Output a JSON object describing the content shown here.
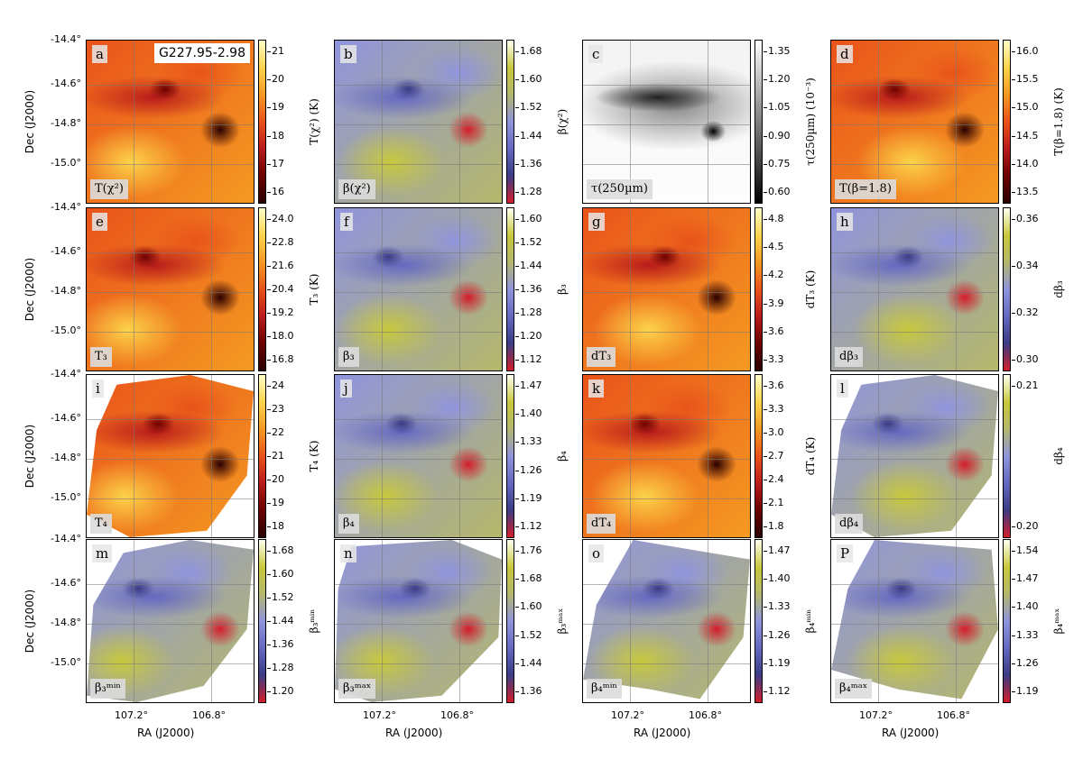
{
  "source_name": "G227.95-2.98",
  "dec_label": "Dec (J2000)",
  "ra_label": "RA (J2000)",
  "dec_ticks": [
    "-14.4°",
    "-14.6°",
    "-14.8°",
    "-15.0°"
  ],
  "ra_ticks": [
    "107.2°",
    "106.8°"
  ],
  "colormaps": {
    "hot": [
      "#2a0000",
      "#6e0000",
      "#b81b1b",
      "#e9531a",
      "#f59a22",
      "#fcd34a",
      "#ffffc8"
    ],
    "beta": [
      "#d21e2b",
      "#3a3c86",
      "#6468c0",
      "#8f94dd",
      "#b5b86a",
      "#c8c83c",
      "#fffff0"
    ],
    "gray": [
      "#000000",
      "#555555",
      "#aaaaaa",
      "#ffffff"
    ]
  },
  "panels": [
    {
      "letter": "a",
      "tag": "T(χ²)",
      "cmap": "hot",
      "cbar_label": "T(χ²) (K)",
      "ticks": [
        "21",
        "20",
        "19",
        "18",
        "17",
        "16"
      ]
    },
    {
      "letter": "b",
      "tag": "β(χ²)",
      "cmap": "beta",
      "cbar_label": "β(χ²)",
      "ticks": [
        "1.68",
        "1.60",
        "1.52",
        "1.44",
        "1.36",
        "1.28"
      ]
    },
    {
      "letter": "c",
      "tag": "τ(250µm)",
      "cmap": "gray",
      "cbar_label": "τ(250µm) (10⁻³)",
      "ticks": [
        "1.35",
        "1.20",
        "1.05",
        "0.90",
        "0.75",
        "0.60"
      ]
    },
    {
      "letter": "d",
      "tag": "T(β=1.8)",
      "cmap": "hot",
      "cbar_label": "T(β=1.8) (K)",
      "ticks": [
        "16.0",
        "15.5",
        "15.0",
        "14.5",
        "14.0",
        "13.5"
      ]
    },
    {
      "letter": "e",
      "tag": "T₃",
      "cmap": "hot",
      "cbar_label": "T₃ (K)",
      "ticks": [
        "24.0",
        "22.8",
        "21.6",
        "20.4",
        "19.2",
        "18.0",
        "16.8"
      ]
    },
    {
      "letter": "f",
      "tag": "β₃",
      "cmap": "beta",
      "cbar_label": "β₃",
      "ticks": [
        "1.60",
        "1.52",
        "1.44",
        "1.36",
        "1.28",
        "1.20",
        "1.12"
      ]
    },
    {
      "letter": "g",
      "tag": "dT₃",
      "cmap": "hot",
      "cbar_label": "dT₃ (K)",
      "ticks": [
        "4.8",
        "4.5",
        "4.2",
        "3.9",
        "3.6",
        "3.3"
      ]
    },
    {
      "letter": "h",
      "tag": "dβ₃",
      "cmap": "beta",
      "cbar_label": "dβ₃",
      "ticks": [
        "0.36",
        "0.34",
        "0.32",
        "0.30"
      ]
    },
    {
      "letter": "i",
      "tag": "T₄",
      "cmap": "hot",
      "cbar_label": "T₄ (K)",
      "ticks": [
        "24",
        "23",
        "22",
        "21",
        "20",
        "19",
        "18"
      ]
    },
    {
      "letter": "j",
      "tag": "β₄",
      "cmap": "beta",
      "cbar_label": "β₄",
      "ticks": [
        "1.47",
        "1.40",
        "1.33",
        "1.26",
        "1.19",
        "1.12"
      ]
    },
    {
      "letter": "k",
      "tag": "dT₄",
      "cmap": "hot",
      "cbar_label": "dT₄ (K)",
      "ticks": [
        "3.6",
        "3.3",
        "3.0",
        "2.7",
        "2.4",
        "2.1",
        "1.8"
      ]
    },
    {
      "letter": "l",
      "tag": "dβ₄",
      "cmap": "beta",
      "cbar_label": "dβ₄",
      "ticks": [
        "0.21",
        "0.20"
      ]
    },
    {
      "letter": "m",
      "tag": "β₃ᵐⁱⁿ",
      "cmap": "beta",
      "cbar_label": "β₃ᵐⁱⁿ",
      "ticks": [
        "1.68",
        "1.60",
        "1.52",
        "1.44",
        "1.36",
        "1.28",
        "1.20"
      ]
    },
    {
      "letter": "n",
      "tag": "β₃ᵐᵃˣ",
      "cmap": "beta",
      "cbar_label": "β₃ᵐᵃˣ",
      "ticks": [
        "1.76",
        "1.68",
        "1.60",
        "1.52",
        "1.44",
        "1.36"
      ]
    },
    {
      "letter": "o",
      "tag": "β₄ᵐⁱⁿ",
      "cmap": "beta",
      "cbar_label": "β₄ᵐⁱⁿ",
      "ticks": [
        "1.47",
        "1.40",
        "1.33",
        "1.26",
        "1.19",
        "1.12"
      ]
    },
    {
      "letter": "P",
      "tag": "β₄ᵐᵃˣ",
      "cmap": "beta",
      "cbar_label": "β₄ᵐᵃˣ",
      "ticks": [
        "1.54",
        "1.47",
        "1.40",
        "1.33",
        "1.26",
        "1.19"
      ]
    }
  ]
}
